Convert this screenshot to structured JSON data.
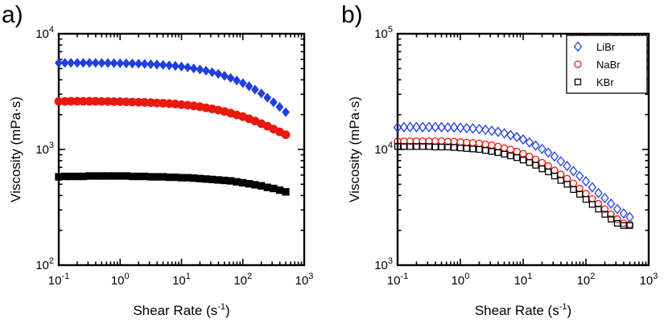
{
  "chart_data": [
    {
      "panel_label": "a)",
      "type": "scatter",
      "xlabel": "Shear Rate (s",
      "xlabel_sup": "-1",
      "xlabel_end": ")",
      "ylabel": "Viscosity (mPa·s)",
      "xscale": "log",
      "yscale": "log",
      "xlim": [
        0.1,
        1000
      ],
      "ylim": [
        100,
        10000
      ],
      "xticks": [
        {
          "base": "10",
          "exp": "-1"
        },
        {
          "base": "10",
          "exp": "0"
        },
        {
          "base": "10",
          "exp": "1"
        },
        {
          "base": "10",
          "exp": "2"
        },
        {
          "base": "10",
          "exp": "3"
        }
      ],
      "yticks": [
        {
          "base": "10",
          "exp": "2"
        },
        {
          "base": "10",
          "exp": "3"
        },
        {
          "base": "10",
          "exp": "4"
        }
      ],
      "x": [
        0.1,
        0.126,
        0.158,
        0.2,
        0.251,
        0.316,
        0.398,
        0.501,
        0.631,
        0.794,
        1.0,
        1.26,
        1.58,
        2.0,
        2.51,
        3.16,
        3.98,
        5.01,
        6.31,
        7.94,
        10.0,
        12.6,
        15.8,
        20.0,
        25.1,
        31.6,
        39.8,
        50.1,
        63.1,
        79.4,
        100,
        126,
        158,
        200,
        251,
        316,
        398,
        500
      ],
      "series": [
        {
          "name": "LiBr",
          "marker": "diamond-filled",
          "color": "#1f3fe0",
          "values": [
            5600,
            5600,
            5600,
            5600,
            5600,
            5600,
            5600,
            5590,
            5580,
            5570,
            5560,
            5550,
            5530,
            5510,
            5490,
            5460,
            5420,
            5380,
            5330,
            5270,
            5200,
            5120,
            5020,
            4910,
            4790,
            4650,
            4500,
            4330,
            4150,
            3950,
            3740,
            3520,
            3290,
            3050,
            2800,
            2560,
            2330,
            2100
          ]
        },
        {
          "name": "NaBr",
          "marker": "circle-filled",
          "color": "#e8190f",
          "values": [
            2600,
            2600,
            2610,
            2610,
            2610,
            2610,
            2610,
            2600,
            2600,
            2590,
            2590,
            2580,
            2570,
            2560,
            2550,
            2540,
            2520,
            2510,
            2490,
            2470,
            2440,
            2410,
            2380,
            2340,
            2290,
            2240,
            2190,
            2130,
            2060,
            1990,
            1920,
            1840,
            1760,
            1670,
            1590,
            1500,
            1420,
            1340
          ]
        },
        {
          "name": "KBr",
          "marker": "square-filled",
          "color": "#000000",
          "values": [
            580,
            585,
            585,
            585,
            585,
            590,
            590,
            590,
            590,
            590,
            590,
            590,
            585,
            585,
            585,
            580,
            580,
            580,
            575,
            575,
            570,
            570,
            565,
            560,
            555,
            550,
            545,
            540,
            535,
            525,
            515,
            505,
            495,
            485,
            470,
            460,
            445,
            430
          ]
        }
      ]
    },
    {
      "panel_label": "b)",
      "type": "scatter",
      "xlabel": "Shear Rate (s",
      "xlabel_sup": "-1",
      "xlabel_end": ")",
      "ylabel": "Viscosity (mPa·s)",
      "xscale": "log",
      "yscale": "log",
      "xlim": [
        0.1,
        1000
      ],
      "ylim": [
        1000,
        100000
      ],
      "xticks": [
        {
          "base": "10",
          "exp": "-1"
        },
        {
          "base": "10",
          "exp": "0"
        },
        {
          "base": "10",
          "exp": "1"
        },
        {
          "base": "10",
          "exp": "2"
        },
        {
          "base": "10",
          "exp": "3"
        }
      ],
      "yticks": [
        {
          "base": "10",
          "exp": "3"
        },
        {
          "base": "10",
          "exp": "4"
        },
        {
          "base": "10",
          "exp": "5"
        }
      ],
      "legend_position": "top-right",
      "x": [
        0.1,
        0.126,
        0.158,
        0.2,
        0.251,
        0.316,
        0.398,
        0.501,
        0.631,
        0.794,
        1.0,
        1.26,
        1.58,
        2.0,
        2.51,
        3.16,
        3.98,
        5.01,
        6.31,
        7.94,
        10.0,
        12.6,
        15.8,
        20.0,
        25.1,
        31.6,
        39.8,
        50.1,
        63.1,
        79.4,
        100,
        126,
        158,
        200,
        251,
        316,
        398,
        500
      ],
      "series": [
        {
          "name": "LiBr",
          "marker": "diamond-open",
          "color": "#1f3fe0",
          "values": [
            15500,
            15600,
            15600,
            15600,
            15600,
            15600,
            15600,
            15600,
            15500,
            15500,
            15400,
            15300,
            15200,
            15000,
            14800,
            14500,
            14200,
            13800,
            13300,
            12800,
            12200,
            11500,
            10800,
            10100,
            9400,
            8700,
            7900,
            7200,
            6500,
            5900,
            5300,
            4700,
            4200,
            3800,
            3400,
            3050,
            2800,
            2600
          ]
        },
        {
          "name": "NaBr",
          "marker": "circle-open",
          "color": "#e8190f",
          "values": [
            11800,
            11800,
            11800,
            11800,
            11800,
            11800,
            11800,
            11800,
            11700,
            11700,
            11600,
            11500,
            11400,
            11300,
            11100,
            10900,
            10600,
            10300,
            10000,
            9600,
            9200,
            8700,
            8200,
            7700,
            7200,
            6600,
            6100,
            5600,
            5100,
            4600,
            4150,
            3750,
            3400,
            3050,
            2750,
            2500,
            2300,
            2250
          ]
        },
        {
          "name": "KBr",
          "marker": "square-open",
          "color": "#000000",
          "values": [
            10600,
            10600,
            10600,
            10600,
            10600,
            10600,
            10500,
            10500,
            10500,
            10400,
            10300,
            10200,
            10100,
            10000,
            9800,
            9600,
            9400,
            9100,
            8800,
            8500,
            8100,
            7700,
            7300,
            6800,
            6400,
            5900,
            5400,
            5000,
            4500,
            4100,
            3700,
            3350,
            3050,
            2750,
            2500,
            2300,
            2200,
            2200
          ]
        }
      ]
    }
  ]
}
